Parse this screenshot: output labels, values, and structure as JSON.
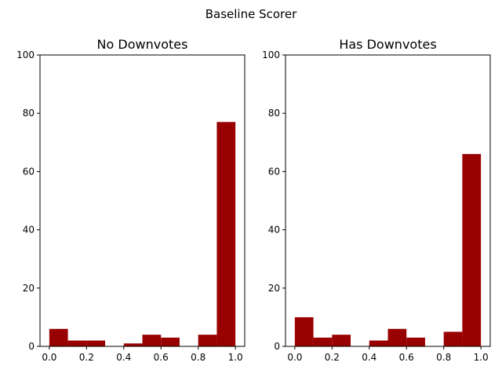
{
  "chart_data": {
    "suptitle": "Baseline Scorer",
    "bar_color": "#990000",
    "panels": [
      {
        "type": "bar",
        "title": "No Downvotes",
        "xlim": [
          -0.05,
          1.05
        ],
        "ylim": [
          0,
          100
        ],
        "xticks": [
          0.0,
          0.2,
          0.4,
          0.6,
          0.8,
          1.0
        ],
        "xtick_labels": [
          "0.0",
          "0.2",
          "0.4",
          "0.6",
          "0.8",
          "1.0"
        ],
        "yticks": [
          0,
          20,
          40,
          60,
          80,
          100
        ],
        "ytick_labels": [
          "0",
          "20",
          "40",
          "60",
          "80",
          "100"
        ],
        "bin_edges": [
          0.0,
          0.1,
          0.2,
          0.3,
          0.4,
          0.5,
          0.6,
          0.7,
          0.8,
          0.9,
          1.0
        ],
        "values": [
          6,
          2,
          2,
          0,
          1,
          4,
          3,
          0,
          4,
          77
        ]
      },
      {
        "type": "bar",
        "title": "Has Downvotes",
        "xlim": [
          -0.05,
          1.05
        ],
        "ylim": [
          0,
          100
        ],
        "xticks": [
          0.0,
          0.2,
          0.4,
          0.6,
          0.8,
          1.0
        ],
        "xtick_labels": [
          "0.0",
          "0.2",
          "0.4",
          "0.6",
          "0.8",
          "1.0"
        ],
        "yticks": [
          0,
          20,
          40,
          60,
          80,
          100
        ],
        "ytick_labels": [
          "0",
          "20",
          "40",
          "60",
          "80",
          "100"
        ],
        "bin_edges": [
          0.0,
          0.1,
          0.2,
          0.3,
          0.4,
          0.5,
          0.6,
          0.7,
          0.8,
          0.9,
          1.0
        ],
        "values": [
          10,
          3,
          4,
          0,
          2,
          6,
          3,
          0,
          5,
          66
        ]
      }
    ]
  }
}
